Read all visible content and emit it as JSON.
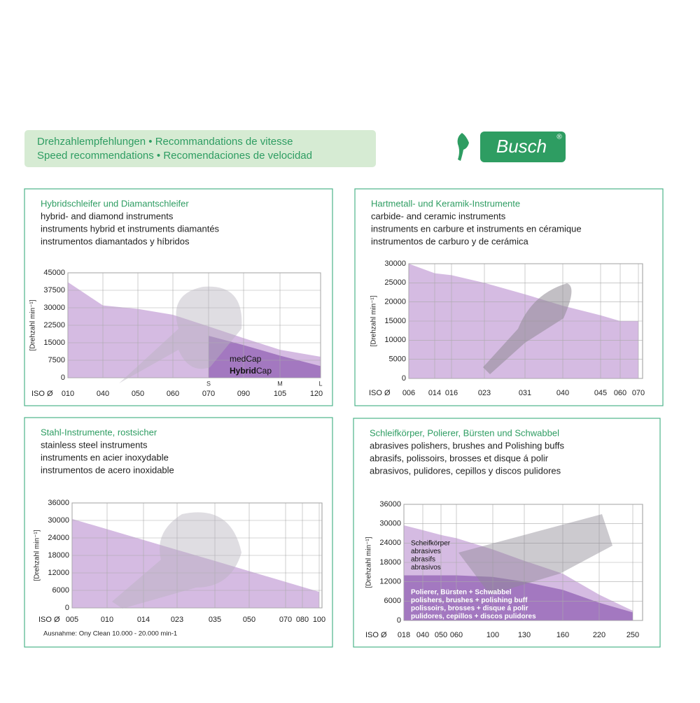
{
  "header": {
    "lines": [
      "Drehzahlempfehlungen • Recommandations de vitesse",
      "Speed recommendations • Recomendaciones de velocidad"
    ]
  },
  "logo": {
    "text": "Busch",
    "mark": "®"
  },
  "chart_data": [
    {
      "type": "area",
      "title_lines": [
        "Hybridschleifer und Diamantschleifer",
        "hybrid- and diamond instruments",
        "instruments hybrid et instruments diamantés",
        "instrumentos diamantados y híbridos"
      ],
      "y_label": "[Drehzahl min⁻¹]",
      "x_label": "ISO Ø",
      "categories": [
        "010",
        "040",
        "050",
        "060",
        "070",
        "090",
        "105",
        "120"
      ],
      "size_labels": [
        {
          "label": "S",
          "at": "070"
        },
        {
          "label": "M",
          "at": "105"
        },
        {
          "label": "L",
          "at": "120"
        }
      ],
      "series": [
        {
          "color": "#c7a4d8",
          "values": [
            41000,
            31000,
            29500,
            27000,
            22000,
            17000,
            12000,
            9000
          ]
        },
        {
          "color": "#9a6cba",
          "label_lines": [
            "medCap"
          ],
          "bold_label": [
            "Hybrid",
            "Cap"
          ],
          "values": [
            null,
            null,
            null,
            null,
            18000,
            14000,
            9500,
            5000
          ]
        }
      ],
      "ylim": [
        0,
        45000
      ],
      "yticks": [
        0,
        7500,
        15000,
        22500,
        30000,
        37500,
        45000
      ],
      "grid": true
    },
    {
      "type": "area",
      "title_lines": [
        "Hartmetall- und Keramik-Instrumente",
        "carbide- and ceramic instruments",
        "instruments en carbure et instruments en céramique",
        "instrumentos de carburo y de cerámica"
      ],
      "y_label": "[Drehzahl min⁻¹]",
      "x_label": "ISO Ø",
      "categories": [
        "006",
        "014",
        "016",
        "023",
        "031",
        "040",
        "045",
        "060",
        "070"
      ],
      "series": [
        {
          "color": "#c7a4d8",
          "values": [
            30000,
            27500,
            27000,
            25000,
            22000,
            19000,
            16500,
            15000,
            15000
          ]
        }
      ],
      "ylim": [
        0,
        30000
      ],
      "yticks": [
        0,
        5000,
        10000,
        15000,
        20000,
        25000,
        30000
      ],
      "grid": true
    },
    {
      "type": "area",
      "title_lines": [
        "Stahl-Instrumente, rostsicher",
        "stainless steel instruments",
        "instruments en acier inoxydable",
        "instrumentos de acero inoxidable"
      ],
      "y_label": "[Drehzahl min⁻¹]",
      "x_label": "ISO Ø",
      "categories": [
        "005",
        "010",
        "014",
        "023",
        "035",
        "050",
        "070",
        "080",
        "100"
      ],
      "series": [
        {
          "color": "#c7a4d8",
          "values": [
            30500,
            27000,
            23300,
            19900,
            16100,
            12600,
            8900,
            7200,
            5500
          ]
        }
      ],
      "note": "Ausnahme: Ony Clean 10.000 - 20.000 min-1",
      "ylim": [
        0,
        36000
      ],
      "yticks": [
        0,
        6000,
        12000,
        18000,
        24000,
        30000,
        36000
      ],
      "grid": true
    },
    {
      "type": "area",
      "title_lines": [
        "Schleifkörper, Polierer, Bürsten und Schwabbel",
        "abrasives polishers, brushes and Polishing buffs",
        "abrasifs, polissoirs, brosses et disque á polir",
        "abrasivos, pulidores, cepillos y discos pulidores"
      ],
      "y_label": "[Drehzahl min⁻¹]",
      "x_label": "ISO Ø",
      "categories": [
        "018",
        "040",
        "050",
        "060",
        "100",
        "130",
        "160",
        "220",
        "250"
      ],
      "series": [
        {
          "color": "#c7a4d8",
          "label_lines": [
            "Scheifkörper",
            "abrasives",
            "abrasifs",
            "abrasivos"
          ],
          "values": [
            29500,
            28000,
            26500,
            25500,
            22000,
            18500,
            14500,
            8000,
            3000
          ]
        },
        {
          "color": "#9a6cba",
          "label_lines": [
            "Polierer, Bürsten + Schwabbel",
            "polishers, brushes + polishing buff",
            "polissoirs, brosses + disque á polir",
            "pulidores, cepillos + discos pulidores"
          ],
          "values": [
            14000,
            14000,
            14000,
            14000,
            13500,
            12000,
            9500,
            5500,
            2500
          ]
        }
      ],
      "ylim": [
        0,
        36000
      ],
      "yticks": [
        0,
        6000,
        12000,
        18000,
        24000,
        30000,
        36000
      ],
      "grid": true
    }
  ]
}
